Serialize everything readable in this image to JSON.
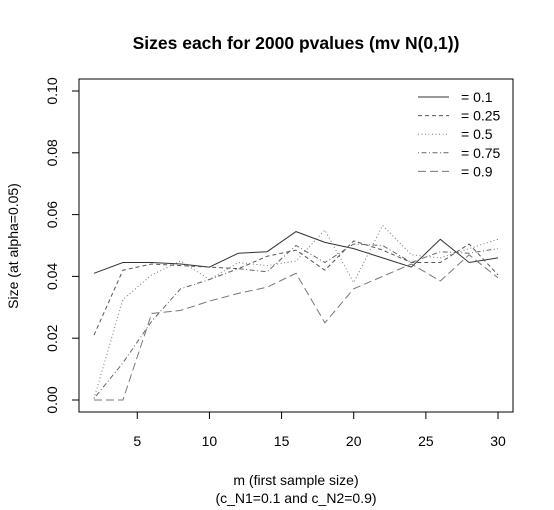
{
  "chart_data": {
    "type": "line",
    "title": "Sizes each for 2000 pvalues (mv N(0,1))",
    "xlabel": "m (first sample size)",
    "xlabel2": "(c_N1=0.1 and c_N2=0.9)",
    "ylabel": "Size (at alpha=0.05)",
    "xlim": [
      2,
      30
    ],
    "ylim": [
      0,
      0.1
    ],
    "x_ticks": [
      5,
      10,
      15,
      20,
      25,
      30
    ],
    "y_ticks": [
      0.0,
      0.02,
      0.04,
      0.06,
      0.08,
      0.1
    ],
    "x_tick_labels": [
      "5",
      "10",
      "15",
      "20",
      "25",
      "30"
    ],
    "y_tick_labels": [
      "0.00",
      "0.02",
      "0.04",
      "0.06",
      "0.08",
      "0.10"
    ],
    "grid": false,
    "legend_position": "top-right",
    "x": [
      2,
      4,
      6,
      8,
      10,
      12,
      14,
      16,
      18,
      20,
      22,
      24,
      26,
      28,
      30
    ],
    "series": [
      {
        "name": "= 0.1",
        "dash": "solid",
        "color": "#333333",
        "values": [
          0.041,
          0.0445,
          0.0445,
          0.044,
          0.043,
          0.0475,
          0.048,
          0.0545,
          0.051,
          0.049,
          0.046,
          0.043,
          0.052,
          0.0445,
          0.046
        ]
      },
      {
        "name": "= 0.25",
        "dash": "dashed",
        "color": "#555555",
        "values": [
          0.021,
          0.042,
          0.044,
          0.0435,
          0.043,
          0.0425,
          0.0465,
          0.0485,
          0.042,
          0.0515,
          0.0485,
          0.0445,
          0.0445,
          0.0505,
          0.0405
        ]
      },
      {
        "name": "= 0.5",
        "dash": "dotted",
        "color": "#777777",
        "values": [
          0.0005,
          0.0325,
          0.0405,
          0.045,
          0.039,
          0.0445,
          0.0435,
          0.045,
          0.055,
          0.038,
          0.0565,
          0.047,
          0.046,
          0.049,
          0.052
        ]
      },
      {
        "name": "= 0.75",
        "dash": "dotdash",
        "color": "#666666",
        "values": [
          0.0005,
          0.012,
          0.0255,
          0.036,
          0.039,
          0.0425,
          0.0415,
          0.05,
          0.0445,
          0.0505,
          0.05,
          0.0445,
          0.048,
          0.0475,
          0.049
        ]
      },
      {
        "name": "= 0.9",
        "dash": "longdash",
        "color": "#777777",
        "values": [
          0.0,
          0.0,
          0.028,
          0.029,
          0.032,
          0.0345,
          0.0365,
          0.041,
          0.025,
          0.036,
          0.04,
          0.044,
          0.0385,
          0.047,
          0.0395
        ]
      }
    ]
  }
}
